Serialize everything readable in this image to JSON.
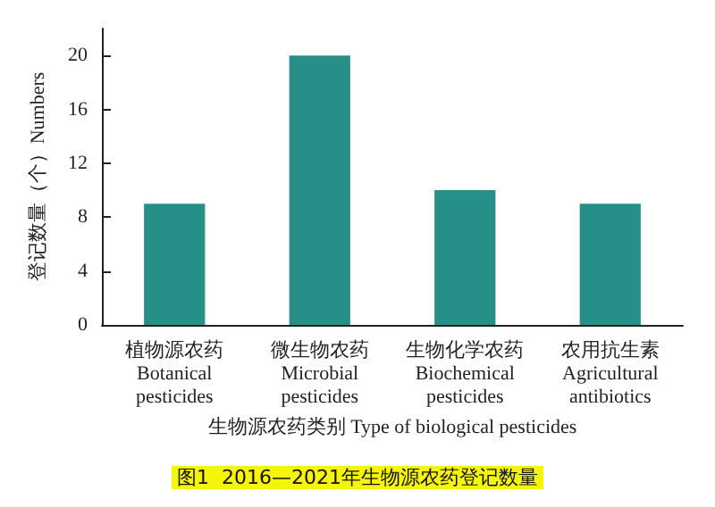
{
  "chart_data": {
    "type": "bar",
    "title": "图1  2016—2021年生物源农药登记数量",
    "xlabel": "生物源农药类别 Type of biological pesticides",
    "ylabel": "登记数量（个）Numbers",
    "categories": [
      "植物源农药\nBotanical\npesticides",
      "微生物农药\nMicrobial\npesticides",
      "生物化学农药\nBiochemical\npesticides",
      "农用抗生素\nAgricultural\nantibiotics"
    ],
    "values": [
      9,
      20,
      10,
      9
    ],
    "color": "#269088",
    "ylim": [
      0,
      22
    ],
    "yticks": [
      0,
      4,
      8,
      12,
      16,
      20
    ],
    "grid": false
  }
}
